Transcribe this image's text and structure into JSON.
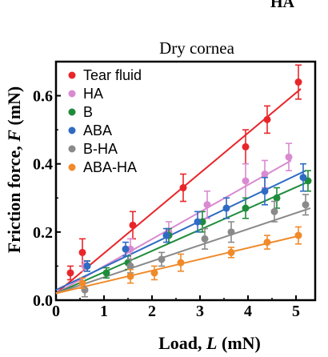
{
  "corner_label": "HA",
  "chart_data": {
    "type": "scatter",
    "title": "Dry cornea",
    "xlabel_parts": [
      "Load, ",
      "L",
      " (mN)"
    ],
    "ylabel_parts": [
      "Friction force, ",
      "F",
      " (mN)"
    ],
    "xlim": [
      0,
      5.4
    ],
    "ylim": [
      0,
      0.7
    ],
    "xticks": [
      0,
      1,
      2,
      3,
      4,
      5
    ],
    "yticks": [
      0.0,
      0.2,
      0.4,
      0.6
    ],
    "ytick_labels": [
      "0.0",
      "0.2",
      "0.4",
      "0.6"
    ],
    "legend_position": "top-left",
    "series": [
      {
        "name": "Tear fluid",
        "color": "#e8262a",
        "x": [
          0.3,
          0.55,
          1.6,
          2.65,
          3.95,
          4.4,
          5.05
        ],
        "y": [
          0.08,
          0.14,
          0.22,
          0.33,
          0.45,
          0.53,
          0.64
        ],
        "err": [
          0.02,
          0.04,
          0.04,
          0.04,
          0.05,
          0.04,
          0.05
        ],
        "fit": [
          [
            0,
            0.02
          ],
          [
            5.1,
            0.62
          ]
        ]
      },
      {
        "name": "HA",
        "color": "#d98ad1",
        "x": [
          0.6,
          1.55,
          2.35,
          3.15,
          3.95,
          4.35,
          4.85
        ],
        "y": [
          0.1,
          0.15,
          0.2,
          0.28,
          0.35,
          0.37,
          0.42
        ],
        "err": [
          0.015,
          0.03,
          0.03,
          0.04,
          0.05,
          0.04,
          0.04
        ],
        "fit": [
          [
            0,
            0.02
          ],
          [
            4.9,
            0.41
          ]
        ]
      },
      {
        "name": "B",
        "color": "#1f8c3b",
        "x": [
          0.65,
          1.05,
          1.5,
          2.35,
          3.05,
          3.95,
          4.6,
          5.25
        ],
        "y": [
          0.1,
          0.08,
          0.11,
          0.19,
          0.23,
          0.27,
          0.3,
          0.35
        ],
        "err": [
          0.015,
          0.015,
          0.02,
          0.02,
          0.03,
          0.03,
          0.03,
          0.03
        ],
        "fit": [
          [
            0,
            0.02
          ],
          [
            5.3,
            0.35
          ]
        ]
      },
      {
        "name": "ABA",
        "color": "#2f6bc3",
        "x": [
          0.65,
          1.45,
          2.3,
          2.95,
          3.55,
          4.35,
          5.15
        ],
        "y": [
          0.1,
          0.15,
          0.19,
          0.23,
          0.27,
          0.32,
          0.36
        ],
        "err": [
          0.015,
          0.02,
          0.02,
          0.03,
          0.03,
          0.04,
          0.04
        ],
        "fit": [
          [
            0,
            0.03
          ],
          [
            5.2,
            0.38
          ]
        ]
      },
      {
        "name": "B-HA",
        "color": "#8a8a8a",
        "x": [
          0.6,
          1.55,
          2.2,
          3.1,
          3.65,
          4.55,
          5.2
        ],
        "y": [
          0.03,
          0.1,
          0.12,
          0.18,
          0.2,
          0.26,
          0.28
        ],
        "err": [
          0.02,
          0.02,
          0.02,
          0.03,
          0.03,
          0.03,
          0.03
        ],
        "fit": [
          [
            0,
            0.02
          ],
          [
            5.3,
            0.27
          ]
        ]
      },
      {
        "name": "ABA-HA",
        "color": "#f08a2a",
        "x": [
          0.55,
          1.55,
          2.05,
          2.6,
          3.65,
          4.4,
          5.05
        ],
        "y": [
          0.05,
          0.07,
          0.08,
          0.11,
          0.14,
          0.17,
          0.19
        ],
        "err": [
          0.015,
          0.02,
          0.02,
          0.025,
          0.015,
          0.02,
          0.025
        ],
        "fit": [
          [
            0,
            0.02
          ],
          [
            5.1,
            0.19
          ]
        ]
      }
    ]
  }
}
